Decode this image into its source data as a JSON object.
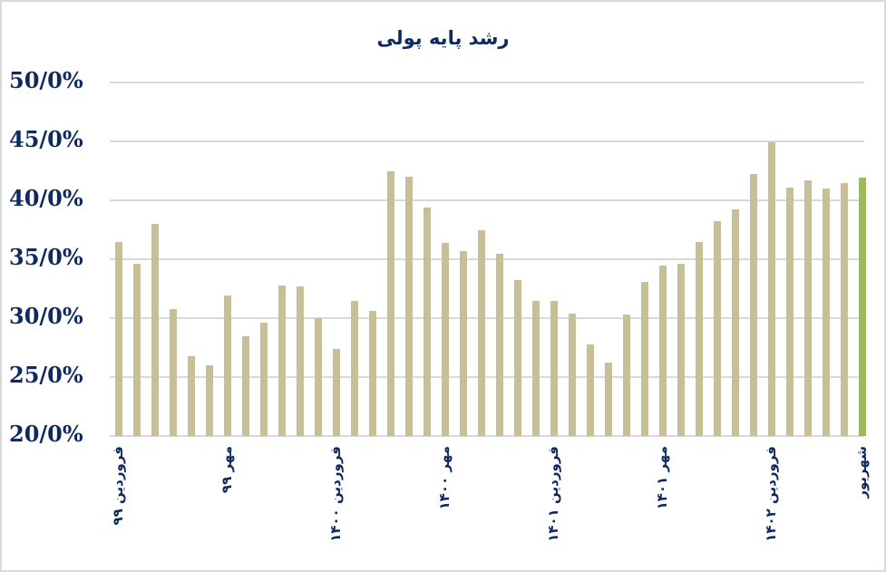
{
  "chart_data": {
    "type": "bar",
    "title": "رشد پایه پولی",
    "xlabel": "",
    "ylabel": "",
    "ylim": [
      20,
      50
    ],
    "yticks": [
      "20/0%",
      "25/0%",
      "30/0%",
      "35/0%",
      "40/0%",
      "45/0%",
      "50/0%"
    ],
    "grid": true,
    "legend": null,
    "categories": [
      "فروردین ۹۹",
      "",
      "",
      "",
      "",
      "",
      "مهر ۹۹",
      "",
      "",
      "",
      "",
      "",
      "فروردین ۱۴۰۰",
      "",
      "",
      "",
      "",
      "",
      "مهر ۱۴۰۰",
      "",
      "",
      "",
      "",
      "",
      "فروردین ۱۴۰۱",
      "",
      "",
      "",
      "",
      "",
      "مهر ۱۴۰۱",
      "",
      "",
      "",
      "",
      "",
      "فروردین ۱۴۰۲",
      "",
      "",
      "",
      "",
      "شهریور"
    ],
    "tick_labels": [
      {
        "index": 0,
        "label": "فروردین ۹۹"
      },
      {
        "index": 6,
        "label": "مهر ۹۹"
      },
      {
        "index": 12,
        "label": "فروردین ۱۴۰۰"
      },
      {
        "index": 18,
        "label": "مهر ۱۴۰۰"
      },
      {
        "index": 24,
        "label": "فروردین ۱۴۰۱"
      },
      {
        "index": 30,
        "label": "مهر ۱۴۰۱"
      },
      {
        "index": 36,
        "label": "فروردین ۱۴۰۲"
      },
      {
        "index": 41,
        "label": "شهریور"
      }
    ],
    "values": [
      36.5,
      34.6,
      38.0,
      30.8,
      26.8,
      26.0,
      31.9,
      28.5,
      29.6,
      32.8,
      32.7,
      30.0,
      27.4,
      31.5,
      30.6,
      42.5,
      42.0,
      39.4,
      36.4,
      35.7,
      37.5,
      35.5,
      33.2,
      31.5,
      31.5,
      30.4,
      27.8,
      26.2,
      30.3,
      33.1,
      34.5,
      34.6,
      36.5,
      38.2,
      39.2,
      42.2,
      44.9,
      41.1,
      41.7,
      41.0,
      41.5,
      41.9
    ],
    "colors": {
      "bar": "#c7bf98",
      "highlight_last": "#9bbb59",
      "text": "#0f2a5e",
      "grid": "#d9d9d9"
    }
  }
}
